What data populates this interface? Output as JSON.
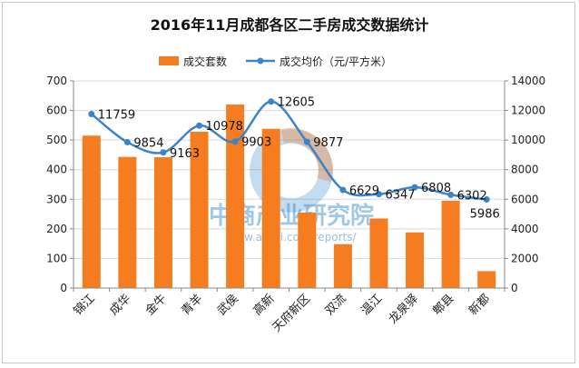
{
  "chart_data": {
    "type": "bar",
    "title": "2016年11月成都各区二手房成交数据统计",
    "categories": [
      "锦江",
      "成华",
      "金牛",
      "青羊",
      "武侯",
      "高新",
      "天府新区",
      "双流",
      "温江",
      "龙泉驿",
      "郫县",
      "新都"
    ],
    "series": [
      {
        "name": "成交套数",
        "type": "bar",
        "axis": "left",
        "color": "#f57c1f",
        "values": [
          515,
          443,
          442,
          528,
          620,
          538,
          255,
          148,
          235,
          188,
          295,
          57
        ]
      },
      {
        "name": "成交均价（元/平方米）",
        "type": "line",
        "axis": "right",
        "color": "#3a84c9",
        "values": [
          11759,
          9854,
          9163,
          10978,
          9903,
          12605,
          9877,
          6629,
          6347,
          6808,
          6302,
          5986
        ]
      }
    ],
    "y_left": {
      "min": 0,
      "max": 700,
      "ticks": [
        "0",
        "100",
        "200",
        "300",
        "400",
        "500",
        "600",
        "700"
      ]
    },
    "y_right": {
      "min": 0,
      "max": 14000,
      "ticks": [
        "0",
        "2000",
        "4000",
        "6000",
        "8000",
        "10000",
        "12000",
        "14000"
      ]
    },
    "grid": true,
    "legend_position": "top"
  },
  "watermark": {
    "name": "中商产业研究院",
    "url": "www.askci.com/reports/"
  }
}
